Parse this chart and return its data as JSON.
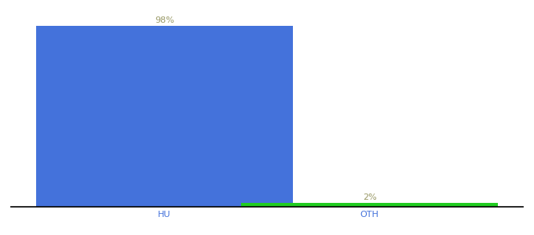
{
  "categories": [
    "HU",
    "OTH"
  ],
  "values": [
    98,
    2
  ],
  "bar_colors": [
    "#4472db",
    "#22cc22"
  ],
  "labels": [
    "98%",
    "2%"
  ],
  "ylim": [
    0,
    108
  ],
  "bar_width": 0.5,
  "x_positions": [
    0.3,
    0.7
  ],
  "xlim": [
    0.0,
    1.0
  ],
  "background_color": "#ffffff",
  "label_color": "#999966",
  "axis_color": "#000000",
  "tick_color": "#4472db",
  "label_fontsize": 8,
  "tick_fontsize": 8
}
